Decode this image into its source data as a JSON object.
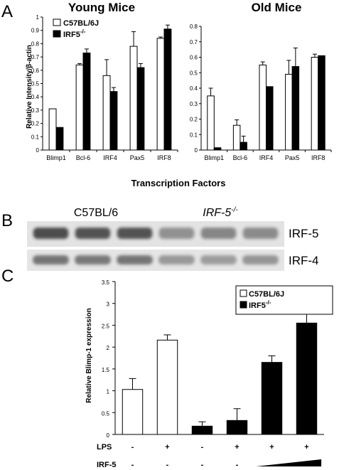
{
  "panels": {
    "a": "A",
    "b": "B",
    "c": "C"
  },
  "chart_data": [
    {
      "type": "bar",
      "title": "Young Mice",
      "ylabel": "Relative Intensity/β-actin",
      "xlabel": "Transcription Factors",
      "ylim": [
        0,
        1
      ],
      "yticks": [
        "0",
        "0.1",
        "0.2",
        "0.3",
        "0.4",
        "0.5",
        "0.6",
        "0.7",
        "0.8",
        "0.9",
        "1"
      ],
      "categories": [
        "Blimp1",
        "Bcl-6",
        "IRF4",
        "Pax5",
        "IRF8"
      ],
      "series": [
        {
          "name": "C57BL/6J",
          "color": "#ffffff",
          "values": [
            0.31,
            0.64,
            0.56,
            0.78,
            0.84
          ],
          "errors": [
            0.0,
            0.01,
            0.12,
            0.11,
            0.01
          ]
        },
        {
          "name": "IRF5",
          "name_sup": "-/-",
          "color": "#000000",
          "values": [
            0.17,
            0.73,
            0.44,
            0.62,
            0.91
          ],
          "errors": [
            0.0,
            0.03,
            0.03,
            0.03,
            0.03
          ]
        }
      ],
      "legend": "top-left"
    },
    {
      "type": "bar",
      "title": "Old Mice",
      "ylim": [
        0,
        0.8
      ],
      "yticks": [
        "0",
        "0.1",
        "0.2",
        "0.3",
        "0.4",
        "0.5",
        "0.6",
        "0.7",
        "0.8"
      ],
      "categories": [
        "Blimp1",
        "Bcl-6",
        "IRF4",
        "Pax5",
        "IRF8"
      ],
      "series": [
        {
          "name": "C57BL/6J",
          "color": "#ffffff",
          "values": [
            0.35,
            0.16,
            0.55,
            0.49,
            0.6
          ],
          "errors": [
            0.05,
            0.035,
            0.02,
            0.09,
            0.02
          ]
        },
        {
          "name": "IRF5-/-",
          "color": "#000000",
          "values": [
            0.015,
            0.05,
            0.41,
            0.54,
            0.61
          ],
          "errors": [
            0.0,
            0.04,
            0.0,
            0.12,
            0.0
          ]
        }
      ]
    },
    {
      "type": "bar",
      "ylabel": "Relative Blimp-1 expression",
      "ylim": [
        0,
        3.5
      ],
      "yticks": [
        "0",
        "0.5",
        "1",
        "1.5",
        "2",
        "2.5",
        "3",
        "3.5"
      ],
      "values": [
        1.03,
        2.16,
        0.19,
        0.32,
        1.65,
        2.55
      ],
      "errors": [
        0.25,
        0.12,
        0.1,
        0.27,
        0.15,
        0.32
      ],
      "bar_colors": [
        "#ffffff",
        "#ffffff",
        "#000000",
        "#000000",
        "#000000",
        "#000000"
      ],
      "legend_items": [
        {
          "name": "C57BL/6J",
          "sup": "",
          "color": "#ffffff"
        },
        {
          "name": "IRF5",
          "sup": "-/-",
          "color": "#000000"
        }
      ],
      "legend": "top-right",
      "conditions": {
        "lps_label": "LPS",
        "lps": [
          "-",
          "+",
          "-",
          "+",
          "+",
          "+"
        ],
        "irf5_label": "IRF-5",
        "irf5": [
          "-",
          "-",
          "-",
          "-",
          "ramp",
          "ramp"
        ]
      }
    }
  ],
  "western_blot": {
    "group1_label": "C57BL/6",
    "group2_label": "IRF-5",
    "group2_sup": "-/-",
    "row1_label": "IRF-5",
    "row2_label": "IRF-4",
    "row1_intensity": [
      0.78,
      0.74,
      0.74,
      0.42,
      0.48,
      0.45
    ],
    "row2_intensity": [
      0.62,
      0.6,
      0.62,
      0.42,
      0.4,
      0.44
    ]
  }
}
